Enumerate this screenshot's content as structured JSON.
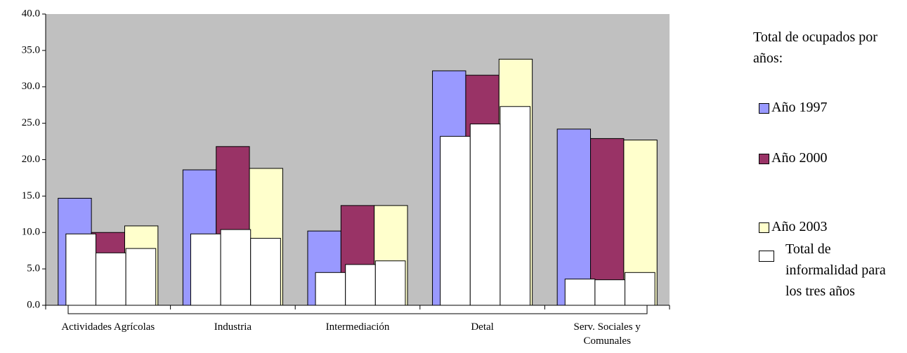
{
  "chart_data": {
    "type": "overlapped-bar",
    "categories": [
      "Actividades Agrícolas",
      "Industria",
      "Intermediación",
      "Detal",
      "Serv. Sociales y Comunales"
    ],
    "legend_title": "Total de ocupados por años:",
    "series": [
      {
        "name": "Año 1997",
        "color": "#9999ff",
        "values": [
          14.7,
          18.6,
          10.2,
          32.2,
          24.2
        ]
      },
      {
        "name": "Año 2000",
        "color": "#993366",
        "values": [
          10.0,
          21.8,
          13.7,
          31.6,
          22.9
        ]
      },
      {
        "name": "Año 2003",
        "color": "#ffffcc",
        "values": [
          10.9,
          18.8,
          13.7,
          33.8,
          22.7
        ]
      }
    ],
    "informality": {
      "name": "Total de informalidad para los tres años",
      "color": "#ffffff",
      "values": [
        [
          9.8,
          7.2,
          7.8
        ],
        [
          9.8,
          10.4,
          9.2
        ],
        [
          4.5,
          5.6,
          6.1
        ],
        [
          23.2,
          24.9,
          27.3
        ],
        [
          3.6,
          3.5,
          4.5
        ]
      ]
    },
    "ylim": [
      0,
      40
    ],
    "yticks": [
      {
        "value": 0,
        "label": "0.0"
      },
      {
        "value": 5,
        "label": "5.0"
      },
      {
        "value": 10,
        "label": "10.0"
      },
      {
        "value": 15,
        "label": "15.0"
      },
      {
        "value": 20,
        "label": "20.0"
      },
      {
        "value": 25,
        "label": "25.0"
      },
      {
        "value": 30,
        "label": "30.0"
      },
      {
        "value": 35,
        "label": "35.0"
      },
      {
        "value": 40,
        "label": "40.0"
      }
    ],
    "plot_background": "#c0c0c0"
  }
}
